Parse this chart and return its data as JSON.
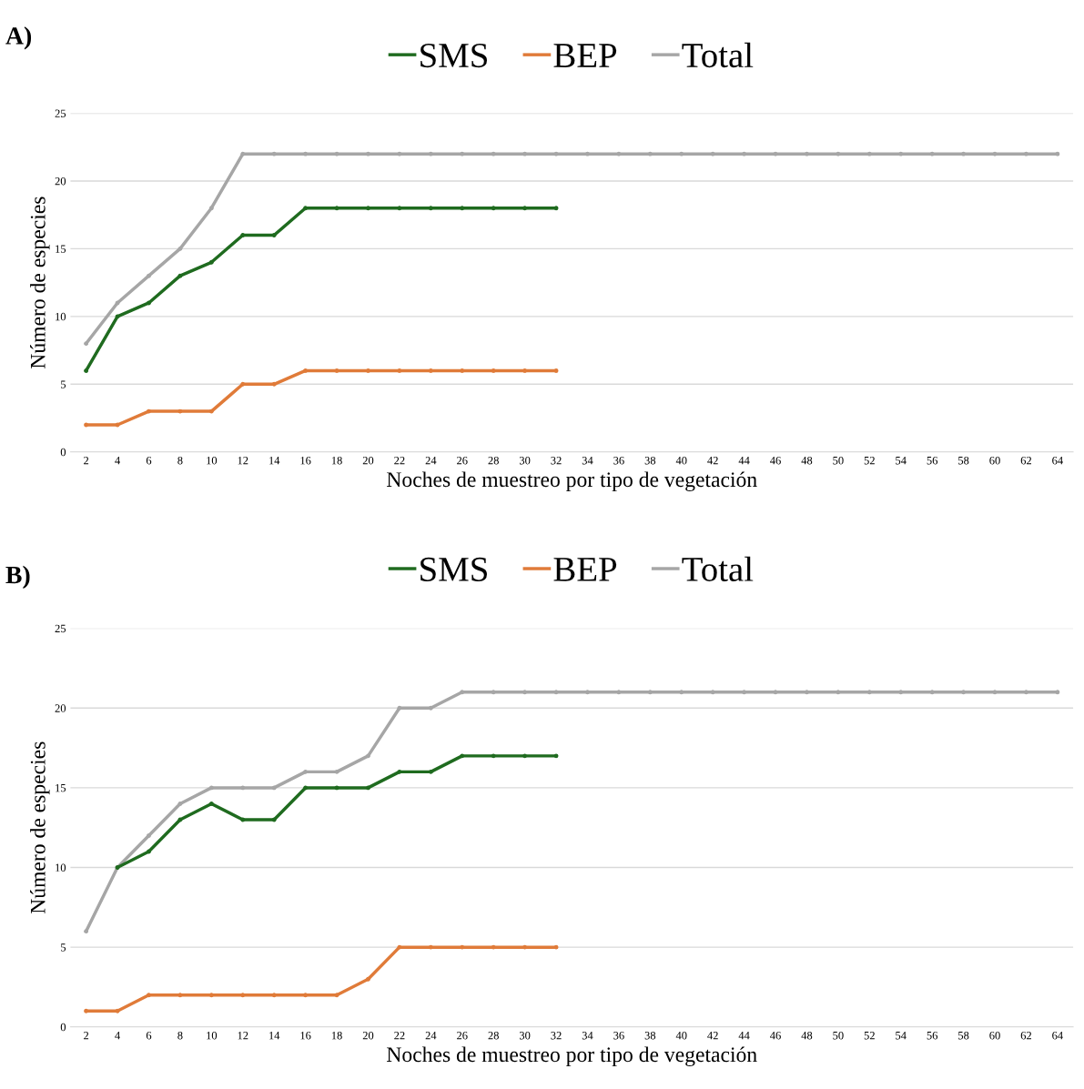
{
  "chart_data": [
    {
      "type": "line",
      "title": "A)",
      "xlabel": "Noches de muestreo por tipo de vegetación",
      "ylabel": "Número de especies",
      "categories": [
        "2",
        "4",
        "6",
        "8",
        "10",
        "12",
        "14",
        "16",
        "18",
        "20",
        "22",
        "24",
        "26",
        "28",
        "30",
        "32",
        "34",
        "36",
        "38",
        "40",
        "42",
        "44",
        "46",
        "48",
        "50",
        "52",
        "54",
        "56",
        "58",
        "60",
        "62",
        "64"
      ],
      "series": [
        {
          "name": "SMS",
          "color": "#1f6b1f",
          "values": [
            6,
            10,
            11,
            13,
            14,
            16,
            16,
            18,
            18,
            18,
            18,
            18,
            18,
            18,
            18,
            18,
            null,
            null,
            null,
            null,
            null,
            null,
            null,
            null,
            null,
            null,
            null,
            null,
            null,
            null,
            null,
            null
          ]
        },
        {
          "name": "BEP",
          "color": "#e07b39",
          "values": [
            2,
            2,
            3,
            3,
            3,
            5,
            5,
            6,
            6,
            6,
            6,
            6,
            6,
            6,
            6,
            6,
            null,
            null,
            null,
            null,
            null,
            null,
            null,
            null,
            null,
            null,
            null,
            null,
            null,
            null,
            null,
            null
          ]
        },
        {
          "name": "Total",
          "color": "#a6a6a6",
          "values": [
            8,
            11,
            13,
            15,
            18,
            22,
            22,
            22,
            22,
            22,
            22,
            22,
            22,
            22,
            22,
            22,
            22,
            22,
            22,
            22,
            22,
            22,
            22,
            22,
            22,
            22,
            22,
            22,
            22,
            22,
            22,
            22
          ]
        }
      ],
      "ylim": [
        0,
        25
      ],
      "yticks": [
        0,
        5,
        10,
        15,
        20,
        25
      ],
      "grid": "y",
      "legend": "top",
      "marker": "circle",
      "line_style": "solid"
    },
    {
      "type": "line",
      "title": "B)",
      "xlabel": "Noches de muestreo por tipo de vegetación",
      "ylabel": "Número de especies",
      "categories": [
        "2",
        "4",
        "6",
        "8",
        "10",
        "12",
        "14",
        "16",
        "18",
        "20",
        "22",
        "24",
        "26",
        "28",
        "30",
        "32",
        "34",
        "36",
        "38",
        "40",
        "42",
        "44",
        "46",
        "48",
        "50",
        "52",
        "54",
        "56",
        "58",
        "60",
        "62",
        "64"
      ],
      "series": [
        {
          "name": "SMS",
          "color": "#1f6b1f",
          "values": [
            null,
            10,
            11,
            13,
            14,
            13,
            13,
            15,
            15,
            15,
            16,
            16,
            17,
            17,
            17,
            17,
            null,
            null,
            null,
            null,
            null,
            null,
            null,
            null,
            null,
            null,
            null,
            null,
            null,
            null,
            null,
            null
          ]
        },
        {
          "name": "BEP",
          "color": "#e07b39",
          "values": [
            1,
            1,
            2,
            2,
            2,
            2,
            2,
            2,
            2,
            3,
            5,
            5,
            5,
            5,
            5,
            5,
            null,
            null,
            null,
            null,
            null,
            null,
            null,
            null,
            null,
            null,
            null,
            null,
            null,
            null,
            null,
            null
          ]
        },
        {
          "name": "Total",
          "color": "#a6a6a6",
          "values": [
            6,
            10,
            12,
            14,
            15,
            15,
            15,
            16,
            16,
            17,
            20,
            20,
            21,
            21,
            21,
            21,
            21,
            21,
            21,
            21,
            21,
            21,
            21,
            21,
            21,
            21,
            21,
            21,
            21,
            21,
            21,
            21
          ]
        }
      ],
      "ylim": [
        0,
        25
      ],
      "yticks": [
        0,
        5,
        10,
        15,
        20,
        25
      ],
      "grid": "y",
      "legend": "top",
      "marker": "circle",
      "line_style": "solid"
    }
  ]
}
